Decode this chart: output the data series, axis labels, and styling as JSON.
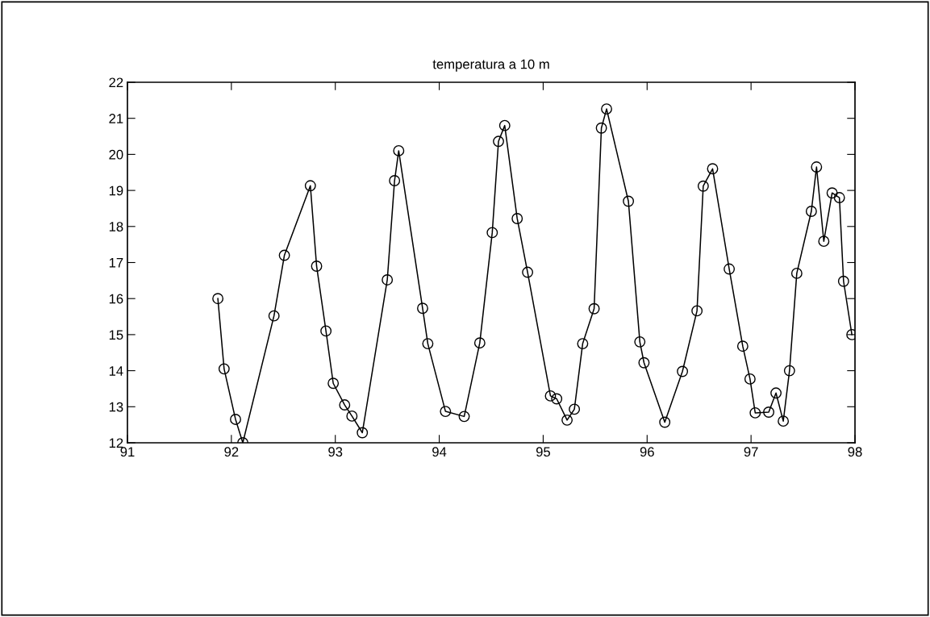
{
  "chart_data": {
    "type": "line",
    "title": "temperatura a 10 m",
    "x": [
      91.87,
      91.93,
      92.04,
      92.11,
      92.41,
      92.51,
      92.76,
      92.82,
      92.91,
      92.98,
      93.09,
      93.16,
      93.26,
      93.5,
      93.57,
      93.61,
      93.84,
      93.89,
      94.06,
      94.24,
      94.39,
      94.51,
      94.57,
      94.63,
      94.75,
      94.85,
      95.07,
      95.13,
      95.23,
      95.3,
      95.38,
      95.49,
      95.56,
      95.61,
      95.82,
      95.93,
      95.97,
      96.17,
      96.34,
      96.48,
      96.54,
      96.63,
      96.79,
      96.92,
      96.99,
      97.04,
      97.17,
      97.24,
      97.31,
      97.37,
      97.44,
      97.58,
      97.63,
      97.7,
      97.78,
      97.85,
      97.89,
      97.97
    ],
    "series": [
      {
        "color": "#000000",
        "values": [
          16.0,
          14.05,
          12.65,
          12.0,
          15.52,
          17.2,
          19.13,
          16.9,
          15.1,
          13.65,
          13.05,
          12.74,
          12.28,
          16.52,
          19.27,
          20.1,
          15.73,
          14.75,
          12.87,
          12.73,
          14.77,
          17.83,
          20.36,
          20.8,
          18.22,
          16.73,
          13.3,
          13.22,
          12.63,
          12.93,
          14.75,
          15.72,
          20.73,
          21.26,
          18.7,
          14.8,
          14.22,
          12.57,
          13.98,
          15.66,
          19.12,
          19.6,
          16.82,
          14.68,
          13.77,
          12.83,
          12.85,
          13.38,
          12.6,
          14.0,
          16.7,
          18.42,
          19.65,
          17.59,
          18.93,
          18.8,
          16.48,
          15.0
        ]
      }
    ],
    "xlim": [
      91,
      98
    ],
    "xticks": [
      91,
      92,
      93,
      94,
      95,
      96,
      97,
      98
    ],
    "ylim": [
      12,
      22
    ],
    "yticks": [
      12,
      13,
      14,
      15,
      16,
      17,
      18,
      19,
      20,
      21,
      22
    ],
    "marker": "circle",
    "line_style": "solid",
    "grid": false,
    "legend": false
  }
}
